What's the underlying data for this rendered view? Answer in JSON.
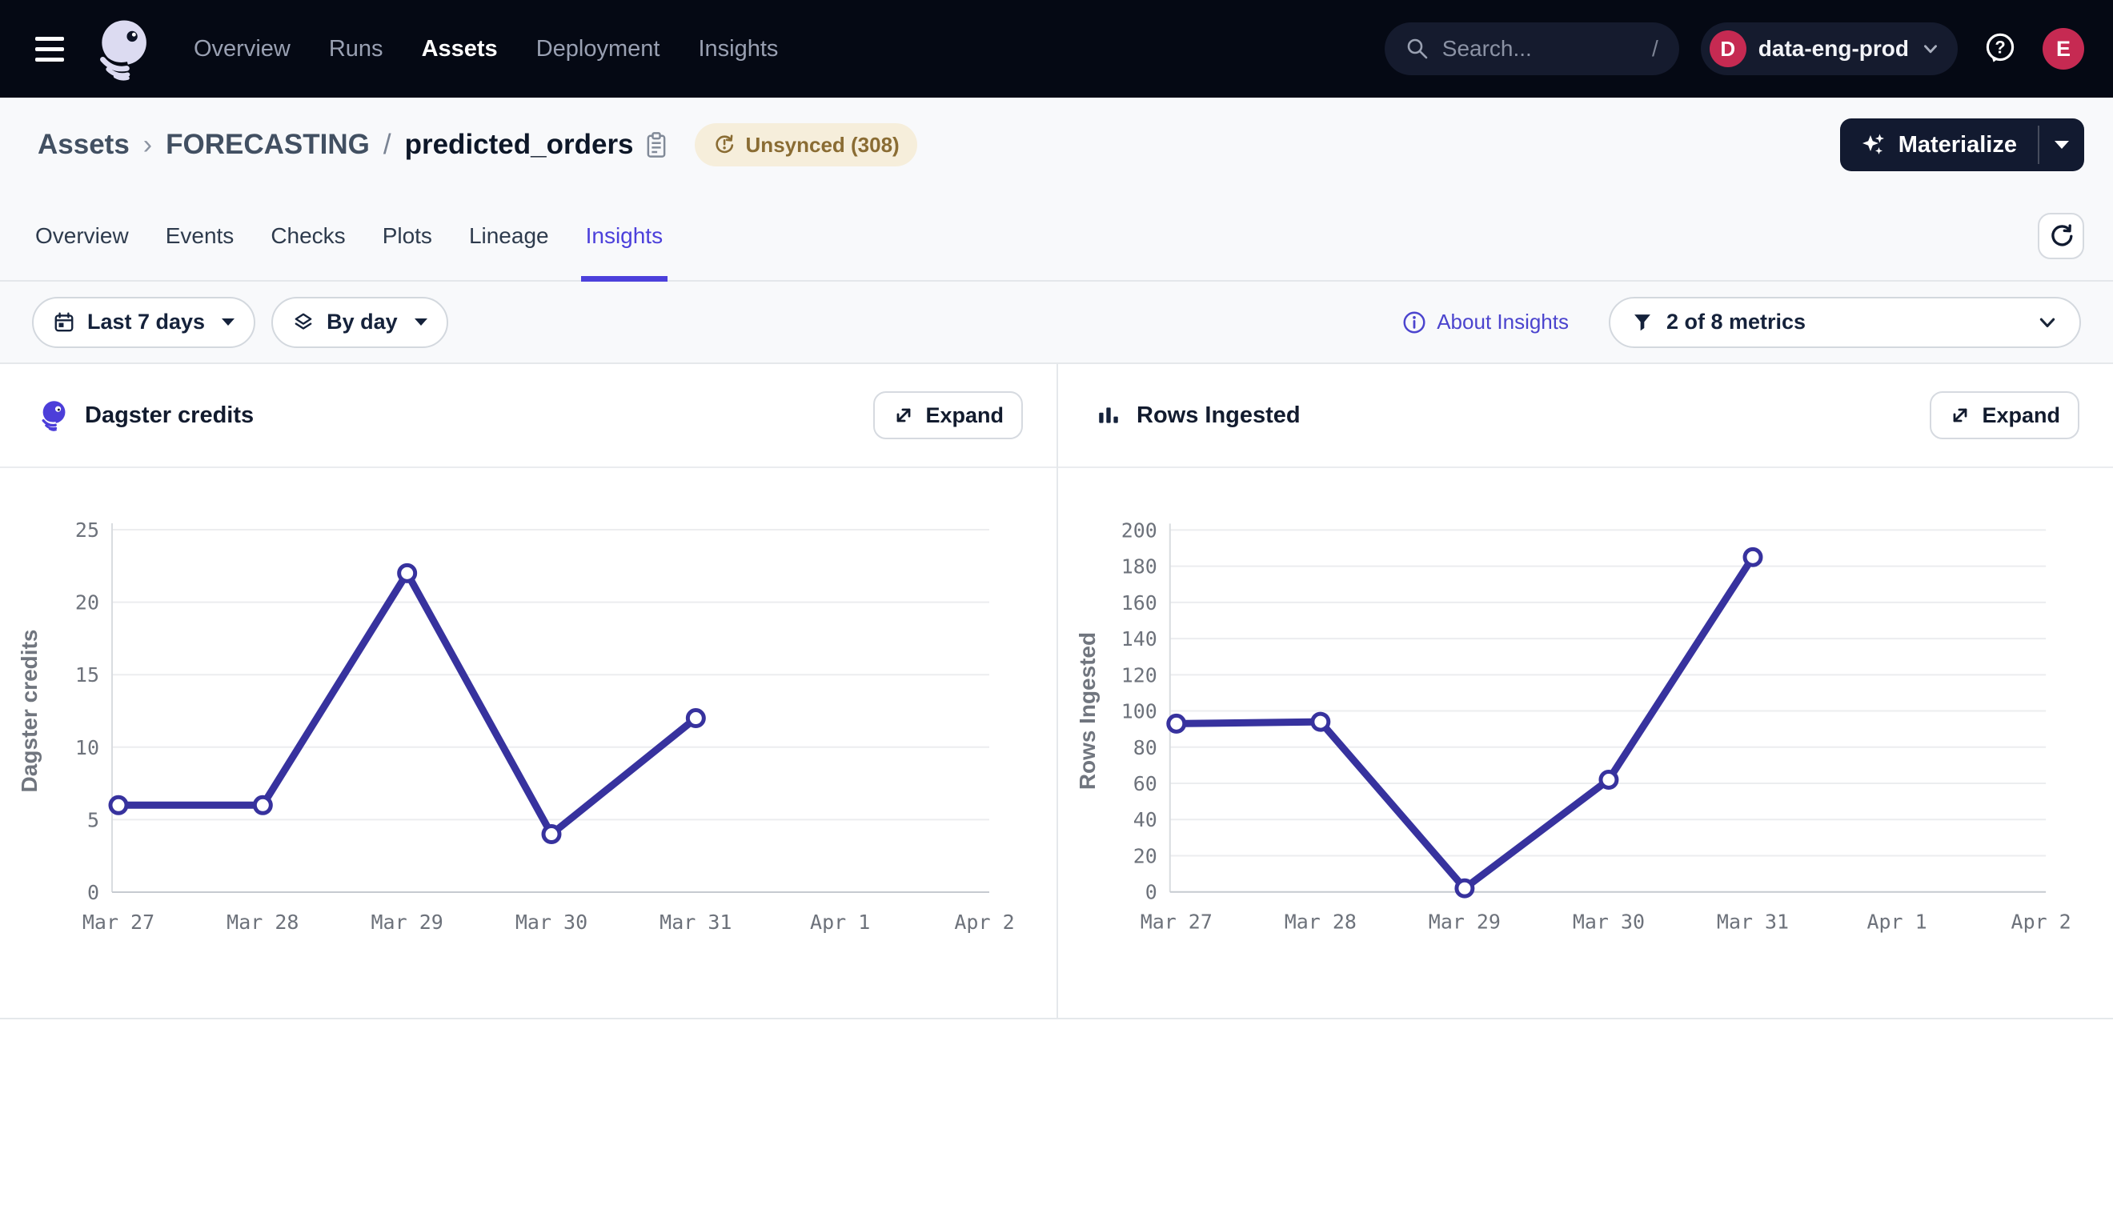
{
  "navbar": {
    "menu_icon": "hamburger-icon",
    "logo_icon": "dagster-octopus-logo",
    "items": [
      {
        "label": "Overview",
        "active": false
      },
      {
        "label": "Runs",
        "active": false
      },
      {
        "label": "Assets",
        "active": true
      },
      {
        "label": "Deployment",
        "active": false
      },
      {
        "label": "Insights",
        "active": false
      }
    ],
    "search": {
      "placeholder": "Search...",
      "shortcut": "/"
    },
    "deployment": {
      "initial": "D",
      "name": "data-eng-prod"
    },
    "help_icon": "question-bubble-icon",
    "user_initial": "E"
  },
  "page_header": {
    "breadcrumb": {
      "root": "Assets",
      "chevron": "›",
      "group": "FORECASTING",
      "separator": "/",
      "asset": "predicted_orders"
    },
    "sync_badge": {
      "label": "Unsynced (308)",
      "bg": "#F6EEDB",
      "color": "#8A6C33"
    },
    "materialize": {
      "label": "Materialize"
    }
  },
  "tabs": [
    {
      "label": "Overview",
      "active": false
    },
    {
      "label": "Events",
      "active": false
    },
    {
      "label": "Checks",
      "active": false
    },
    {
      "label": "Plots",
      "active": false
    },
    {
      "label": "Lineage",
      "active": false
    },
    {
      "label": "Insights",
      "active": true
    }
  ],
  "filters": {
    "time_range": {
      "label": "Last 7 days",
      "icon": "calendar-icon"
    },
    "granularity": {
      "label": "By day",
      "icon": "layers-icon"
    },
    "about_link": {
      "label": "About Insights",
      "icon": "info-circle-icon"
    },
    "metrics": {
      "label": "2 of 8 metrics",
      "icon": "funnel-icon"
    }
  },
  "expand_label": "Expand",
  "accent_colors": {
    "accent_purple": "#4C40DB",
    "crimson": "#C62A52",
    "navbar_bg": "#050914"
  },
  "chart_data": [
    {
      "type": "line",
      "title": "Dagster credits",
      "x": [
        "Mar 27",
        "Mar 28",
        "Mar 29",
        "Mar 30",
        "Mar 31",
        "Apr 1",
        "Apr 2"
      ],
      "series": [
        {
          "name": "Dagster credits",
          "values": [
            6,
            6,
            22,
            4,
            12,
            null,
            null
          ]
        }
      ],
      "xlabel": "",
      "ylabel": "Dagster credits",
      "ylim": [
        0,
        25
      ],
      "yticks": [
        0,
        5,
        10,
        15,
        20,
        25
      ],
      "grid": true,
      "legend": "none",
      "line_color": "#37329E",
      "marker": "open-circle"
    },
    {
      "type": "line",
      "title": "Rows Ingested",
      "x": [
        "Mar 27",
        "Mar 28",
        "Mar 29",
        "Mar 30",
        "Mar 31",
        "Apr 1",
        "Apr 2"
      ],
      "series": [
        {
          "name": "Rows Ingested",
          "values": [
            93,
            94,
            2,
            62,
            185,
            null,
            null
          ]
        }
      ],
      "xlabel": "",
      "ylabel": "Rows Ingested",
      "ylim": [
        0,
        200
      ],
      "yticks": [
        0,
        20,
        40,
        60,
        80,
        100,
        120,
        140,
        160,
        180,
        200
      ],
      "grid": true,
      "legend": "none",
      "line_color": "#37329E",
      "marker": "open-circle"
    }
  ]
}
